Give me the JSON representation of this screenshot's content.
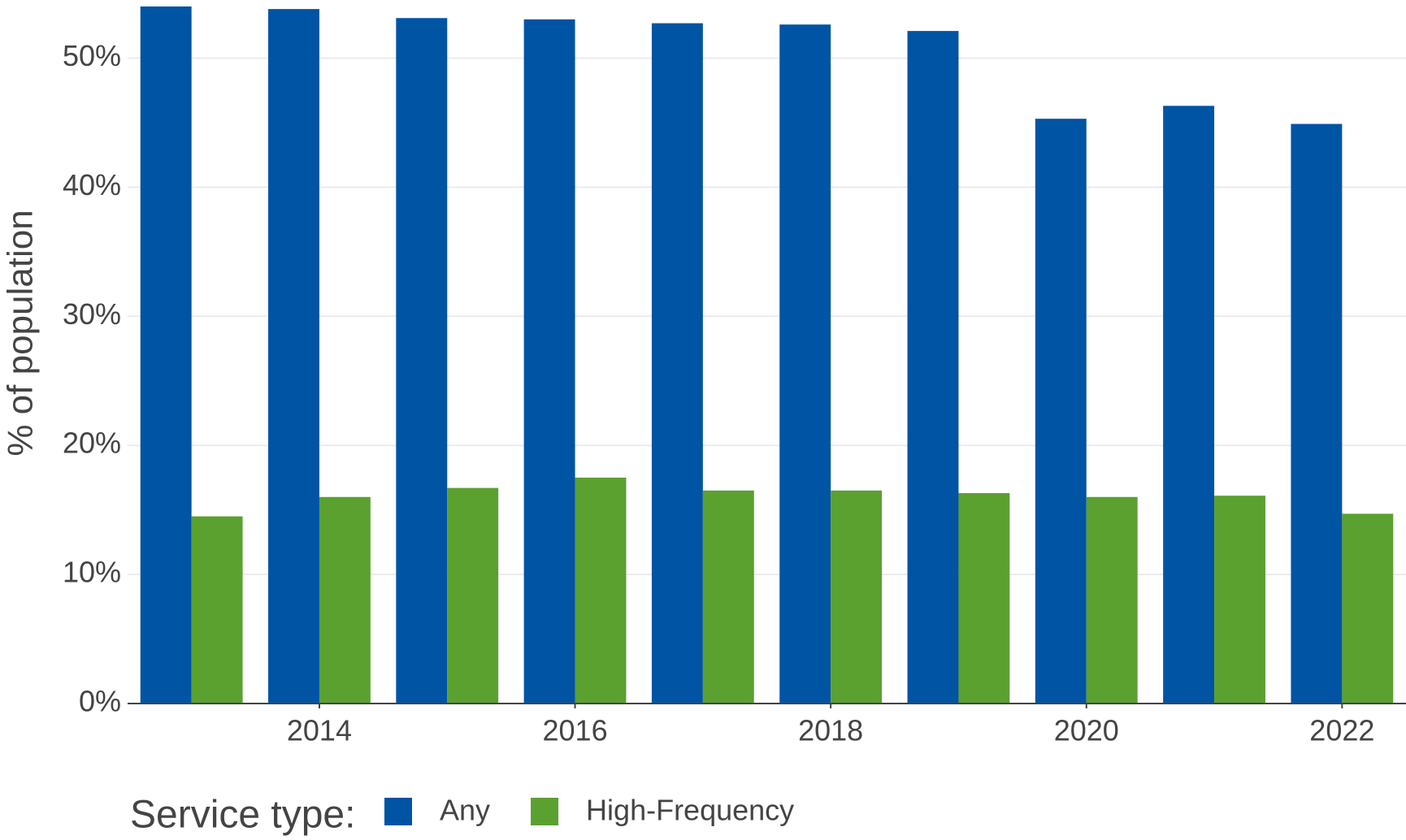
{
  "chart_data": {
    "type": "bar",
    "y_label": "% of population",
    "legend_title": "Service type:",
    "x": [
      2013,
      2014,
      2015,
      2016,
      2017,
      2018,
      2019,
      2020,
      2021,
      2022
    ],
    "series": [
      {
        "name": "Any",
        "color": "#0054a4",
        "values": [
          54.0,
          53.8,
          53.1,
          53.0,
          52.7,
          52.6,
          52.1,
          45.3,
          46.3,
          44.9
        ]
      },
      {
        "name": "High-Frequency",
        "color": "#5aa130",
        "values": [
          14.5,
          16.0,
          16.7,
          17.5,
          16.5,
          16.5,
          16.3,
          16.0,
          16.1,
          14.7
        ]
      }
    ],
    "xlim": [
      2012.5,
      2022.5
    ],
    "xticks": [
      2014,
      2016,
      2018,
      2020,
      2022
    ],
    "ylim": [
      0,
      54.5
    ],
    "yticks": [
      {
        "value": 0,
        "label": "0%"
      },
      {
        "value": 10,
        "label": "10%"
      },
      {
        "value": 20,
        "label": "20%"
      },
      {
        "value": 30,
        "label": "30%"
      },
      {
        "value": 40,
        "label": "40%"
      },
      {
        "value": 50,
        "label": "50%"
      }
    ],
    "grid": true,
    "legend": "bottom"
  }
}
